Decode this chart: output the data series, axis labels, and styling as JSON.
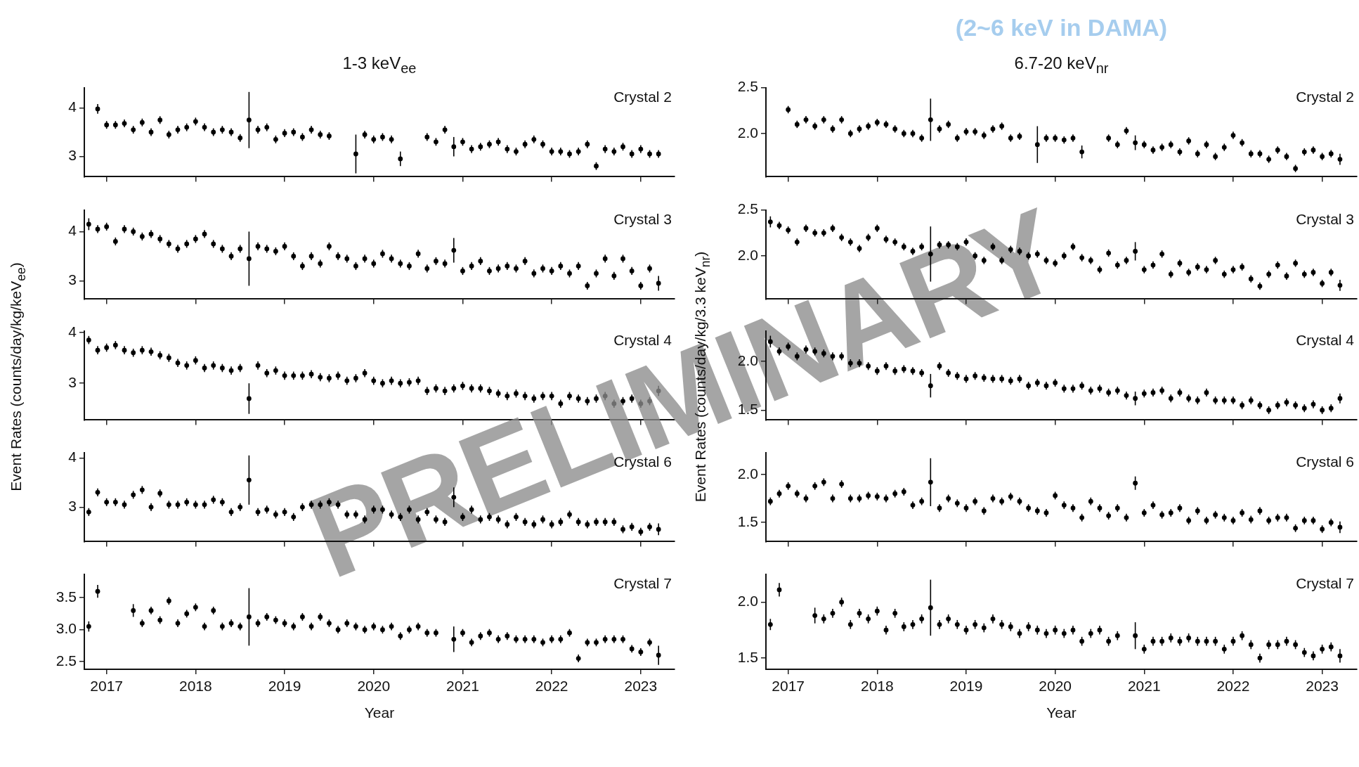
{
  "chart_data": [
    {
      "type": "scatter",
      "title": "1-3 keV$_{ee}$",
      "color": "#000000",
      "marker": "circle",
      "tick_labels": "y",
      "xlim": [
        2016.75,
        2023.38
      ],
      "xticks": [
        2017,
        2018,
        2019,
        2020,
        2021,
        2022,
        2023
      ],
      "ylim": [
        2.58,
        4.42
      ],
      "yticks": [
        {
          "value": 3,
          "label": "3"
        },
        {
          "value": 4,
          "label": "4"
        }
      ],
      "annotations": [
        "Crystal 2"
      ],
      "x": [
        2016.9,
        2017.0,
        2017.1,
        2017.2,
        2017.3,
        2017.4,
        2017.5,
        2017.6,
        2017.7,
        2017.8,
        2017.9,
        2018.0,
        2018.1,
        2018.2,
        2018.3,
        2018.4,
        2018.5,
        2018.6,
        2018.7,
        2018.8,
        2018.9,
        2019.0,
        2019.1,
        2019.2,
        2019.3,
        2019.4,
        2019.5,
        2019.8,
        2019.9,
        2020.0,
        2020.1,
        2020.2,
        2020.3,
        2020.6,
        2020.7,
        2020.8,
        2020.9,
        2021.0,
        2021.1,
        2021.2,
        2021.3,
        2021.4,
        2021.5,
        2021.6,
        2021.7,
        2021.8,
        2021.9,
        2022.0,
        2022.1,
        2022.2,
        2022.3,
        2022.4,
        2022.5,
        2022.6,
        2022.7,
        2022.8,
        2022.9,
        2023.0,
        2023.1,
        2023.2
      ],
      "values": [
        3.98,
        3.65,
        3.65,
        3.68,
        3.55,
        3.7,
        3.5,
        3.75,
        3.45,
        3.55,
        3.6,
        3.72,
        3.6,
        3.5,
        3.55,
        3.5,
        3.38,
        3.75,
        3.55,
        3.6,
        3.35,
        3.48,
        3.5,
        3.4,
        3.55,
        3.45,
        3.42,
        3.05,
        3.45,
        3.35,
        3.4,
        3.35,
        2.95,
        3.4,
        3.3,
        3.55,
        3.2,
        3.3,
        3.15,
        3.2,
        3.25,
        3.3,
        3.15,
        3.1,
        3.25,
        3.35,
        3.25,
        3.1,
        3.1,
        3.05,
        3.1,
        3.25,
        2.8,
        3.15,
        3.1,
        3.2,
        3.05,
        3.15,
        3.05,
        3.05
      ],
      "errors": [
        0.1,
        0.08,
        0.08,
        0.08,
        0.08,
        0.08,
        0.08,
        0.08,
        0.08,
        0.08,
        0.08,
        0.08,
        0.08,
        0.08,
        0.08,
        0.08,
        0.08,
        0.58,
        0.08,
        0.08,
        0.08,
        0.08,
        0.08,
        0.08,
        0.08,
        0.08,
        0.08,
        0.4,
        0.08,
        0.08,
        0.08,
        0.08,
        0.15,
        0.08,
        0.08,
        0.08,
        0.2,
        0.08,
        0.08,
        0.08,
        0.08,
        0.08,
        0.08,
        0.08,
        0.08,
        0.08,
        0.08,
        0.08,
        0.08,
        0.08,
        0.08,
        0.08,
        0.08,
        0.08,
        0.08,
        0.08,
        0.08,
        0.08,
        0.08,
        0.08
      ]
    },
    {
      "type": "scatter",
      "color": "#000000",
      "marker": "circle",
      "tick_labels": "y",
      "xlim": [
        2016.75,
        2023.38
      ],
      "xticks": [
        2017,
        2018,
        2019,
        2020,
        2021,
        2022,
        2023
      ],
      "ylim": [
        2.63,
        4.44
      ],
      "yticks": [
        {
          "value": 3,
          "label": "3"
        },
        {
          "value": 4,
          "label": "4"
        }
      ],
      "annotations": [
        "Crystal 3"
      ],
      "x": [
        2016.8,
        2016.9,
        2017.0,
        2017.1,
        2017.2,
        2017.3,
        2017.4,
        2017.5,
        2017.6,
        2017.7,
        2017.8,
        2017.9,
        2018.0,
        2018.1,
        2018.2,
        2018.3,
        2018.4,
        2018.5,
        2018.6,
        2018.7,
        2018.8,
        2018.9,
        2019.0,
        2019.1,
        2019.2,
        2019.3,
        2019.4,
        2019.5,
        2019.6,
        2019.7,
        2019.8,
        2019.9,
        2020.0,
        2020.1,
        2020.2,
        2020.3,
        2020.4,
        2020.5,
        2020.6,
        2020.7,
        2020.8,
        2020.9,
        2021.0,
        2021.1,
        2021.2,
        2021.3,
        2021.4,
        2021.5,
        2021.6,
        2021.7,
        2021.8,
        2021.9,
        2022.0,
        2022.1,
        2022.2,
        2022.3,
        2022.4,
        2022.5,
        2022.6,
        2022.7,
        2022.8,
        2022.9,
        2023.0,
        2023.1,
        2023.2
      ],
      "values": [
        4.15,
        4.05,
        4.1,
        3.8,
        4.05,
        4.0,
        3.9,
        3.95,
        3.85,
        3.75,
        3.65,
        3.75,
        3.85,
        3.95,
        3.75,
        3.65,
        3.5,
        3.65,
        3.45,
        3.7,
        3.65,
        3.6,
        3.7,
        3.5,
        3.3,
        3.5,
        3.35,
        3.7,
        3.5,
        3.45,
        3.3,
        3.45,
        3.35,
        3.55,
        3.45,
        3.35,
        3.3,
        3.55,
        3.25,
        3.4,
        3.35,
        3.62,
        3.2,
        3.3,
        3.4,
        3.2,
        3.25,
        3.3,
        3.25,
        3.4,
        3.15,
        3.25,
        3.2,
        3.3,
        3.15,
        3.3,
        2.9,
        3.15,
        3.45,
        3.1,
        3.45,
        3.2,
        2.9,
        3.25,
        2.95
      ],
      "errors": [
        0.12,
        0.08,
        0.08,
        0.08,
        0.08,
        0.08,
        0.08,
        0.08,
        0.08,
        0.08,
        0.08,
        0.08,
        0.08,
        0.08,
        0.08,
        0.08,
        0.08,
        0.08,
        0.55,
        0.08,
        0.08,
        0.08,
        0.08,
        0.08,
        0.08,
        0.08,
        0.08,
        0.08,
        0.08,
        0.08,
        0.08,
        0.08,
        0.08,
        0.08,
        0.08,
        0.08,
        0.08,
        0.08,
        0.08,
        0.08,
        0.08,
        0.25,
        0.08,
        0.08,
        0.08,
        0.08,
        0.08,
        0.08,
        0.08,
        0.08,
        0.08,
        0.08,
        0.08,
        0.08,
        0.08,
        0.08,
        0.08,
        0.08,
        0.08,
        0.08,
        0.08,
        0.08,
        0.08,
        0.08,
        0.15
      ]
    },
    {
      "type": "scatter",
      "color": "#000000",
      "marker": "circle",
      "tick_labels": "y",
      "ylabel": "Event Rates (counts/day/kg/keV$_{ee}$)",
      "xlim": [
        2016.75,
        2023.38
      ],
      "xticks": [
        2017,
        2018,
        2019,
        2020,
        2021,
        2022,
        2023
      ],
      "ylim": [
        2.28,
        4.03
      ],
      "yticks": [
        {
          "value": 3,
          "label": "3"
        },
        {
          "value": 4,
          "label": "4"
        }
      ],
      "annotations": [
        "Crystal 4",
        "PRELIMINARY"
      ],
      "x": [
        2016.8,
        2016.9,
        2017.0,
        2017.1,
        2017.2,
        2017.3,
        2017.4,
        2017.5,
        2017.6,
        2017.7,
        2017.8,
        2017.9,
        2018.0,
        2018.1,
        2018.2,
        2018.3,
        2018.4,
        2018.5,
        2018.6,
        2018.7,
        2018.8,
        2018.9,
        2019.0,
        2019.1,
        2019.2,
        2019.3,
        2019.4,
        2019.5,
        2019.6,
        2019.7,
        2019.8,
        2019.9,
        2020.0,
        2020.1,
        2020.2,
        2020.3,
        2020.4,
        2020.5,
        2020.6,
        2020.7,
        2020.8,
        2020.9,
        2021.0,
        2021.1,
        2021.2,
        2021.3,
        2021.4,
        2021.5,
        2021.6,
        2021.7,
        2021.8,
        2021.9,
        2022.0,
        2022.1,
        2022.2,
        2022.3,
        2022.4,
        2022.5,
        2022.6,
        2022.7,
        2022.8,
        2022.9,
        2023.0,
        2023.1,
        2023.2
      ],
      "values": [
        3.85,
        3.65,
        3.7,
        3.75,
        3.65,
        3.6,
        3.65,
        3.62,
        3.55,
        3.5,
        3.4,
        3.35,
        3.45,
        3.3,
        3.35,
        3.3,
        3.25,
        3.3,
        2.7,
        3.35,
        3.2,
        3.25,
        3.15,
        3.15,
        3.15,
        3.18,
        3.12,
        3.1,
        3.15,
        3.05,
        3.1,
        3.2,
        3.05,
        3.0,
        3.05,
        3.0,
        3.02,
        3.05,
        2.85,
        2.9,
        2.85,
        2.9,
        2.95,
        2.9,
        2.9,
        2.85,
        2.8,
        2.75,
        2.8,
        2.75,
        2.7,
        2.75,
        2.75,
        2.6,
        2.75,
        2.7,
        2.65,
        2.7,
        2.75,
        2.6,
        2.65,
        2.7,
        2.6,
        2.65,
        2.85
      ],
      "errors": [
        0.08,
        0.08,
        0.08,
        0.08,
        0.08,
        0.08,
        0.08,
        0.08,
        0.08,
        0.08,
        0.08,
        0.08,
        0.08,
        0.08,
        0.08,
        0.08,
        0.08,
        0.08,
        0.3,
        0.08,
        0.08,
        0.08,
        0.08,
        0.08,
        0.08,
        0.08,
        0.08,
        0.08,
        0.08,
        0.08,
        0.08,
        0.08,
        0.08,
        0.08,
        0.08,
        0.08,
        0.08,
        0.08,
        0.08,
        0.08,
        0.08,
        0.08,
        0.08,
        0.08,
        0.08,
        0.08,
        0.08,
        0.08,
        0.08,
        0.08,
        0.08,
        0.08,
        0.08,
        0.08,
        0.08,
        0.08,
        0.08,
        0.08,
        0.08,
        0.08,
        0.08,
        0.08,
        0.08,
        0.08,
        0.1
      ]
    },
    {
      "type": "scatter",
      "color": "#000000",
      "marker": "circle",
      "tick_labels": "y",
      "xlim": [
        2016.75,
        2023.38
      ],
      "xticks": [
        2017,
        2018,
        2019,
        2020,
        2021,
        2022,
        2023
      ],
      "ylim": [
        2.3,
        4.11
      ],
      "yticks": [
        {
          "value": 3,
          "label": "3"
        },
        {
          "value": 4,
          "label": "4"
        }
      ],
      "annotations": [
        "Crystal 6"
      ],
      "x": [
        2016.8,
        2016.9,
        2017.0,
        2017.1,
        2017.2,
        2017.3,
        2017.4,
        2017.5,
        2017.6,
        2017.7,
        2017.8,
        2017.9,
        2018.0,
        2018.1,
        2018.2,
        2018.3,
        2018.4,
        2018.5,
        2018.6,
        2018.7,
        2018.8,
        2018.9,
        2019.0,
        2019.1,
        2019.2,
        2019.3,
        2019.4,
        2019.5,
        2019.6,
        2019.7,
        2019.8,
        2019.9,
        2020.0,
        2020.1,
        2020.2,
        2020.3,
        2020.4,
        2020.5,
        2020.6,
        2020.7,
        2020.8,
        2020.9,
        2021.0,
        2021.1,
        2021.2,
        2021.3,
        2021.4,
        2021.5,
        2021.6,
        2021.7,
        2021.8,
        2021.9,
        2022.0,
        2022.1,
        2022.2,
        2022.3,
        2022.4,
        2022.5,
        2022.6,
        2022.7,
        2022.8,
        2022.9,
        2023.0,
        2023.1,
        2023.2
      ],
      "values": [
        2.9,
        3.3,
        3.1,
        3.1,
        3.05,
        3.25,
        3.35,
        3.0,
        3.28,
        3.05,
        3.05,
        3.1,
        3.05,
        3.05,
        3.15,
        3.1,
        2.9,
        3.0,
        3.55,
        2.9,
        2.95,
        2.85,
        2.9,
        2.8,
        3.0,
        3.05,
        3.05,
        3.1,
        3.05,
        2.85,
        2.85,
        2.75,
        2.95,
        2.95,
        2.85,
        2.8,
        2.95,
        2.75,
        2.9,
        2.75,
        2.7,
        3.2,
        2.8,
        2.95,
        2.75,
        2.8,
        2.75,
        2.65,
        2.8,
        2.7,
        2.65,
        2.75,
        2.65,
        2.7,
        2.85,
        2.7,
        2.65,
        2.7,
        2.7,
        2.7,
        2.55,
        2.6,
        2.5,
        2.6,
        2.55
      ],
      "errors": [
        0.08,
        0.08,
        0.08,
        0.08,
        0.08,
        0.08,
        0.08,
        0.08,
        0.08,
        0.08,
        0.08,
        0.08,
        0.08,
        0.08,
        0.08,
        0.08,
        0.08,
        0.08,
        0.5,
        0.08,
        0.08,
        0.08,
        0.08,
        0.08,
        0.08,
        0.08,
        0.08,
        0.08,
        0.08,
        0.08,
        0.08,
        0.08,
        0.08,
        0.08,
        0.08,
        0.08,
        0.08,
        0.08,
        0.08,
        0.08,
        0.08,
        0.2,
        0.08,
        0.08,
        0.08,
        0.08,
        0.08,
        0.08,
        0.08,
        0.08,
        0.08,
        0.08,
        0.08,
        0.08,
        0.08,
        0.08,
        0.08,
        0.08,
        0.08,
        0.08,
        0.08,
        0.08,
        0.08,
        0.08,
        0.12
      ]
    },
    {
      "type": "scatter",
      "color": "#000000",
      "marker": "circle",
      "xlabel": "Year",
      "xlim": [
        2016.75,
        2023.38
      ],
      "xticks": [
        2017,
        2018,
        2019,
        2020,
        2021,
        2022,
        2023
      ],
      "ylim": [
        2.38,
        3.87
      ],
      "yticks": [
        {
          "value": 2.5,
          "label": "2.5"
        },
        {
          "value": 3,
          "label": "3.0"
        },
        {
          "value": 3.5,
          "label": "3.5"
        }
      ],
      "annotations": [
        "Crystal 7"
      ],
      "x": [
        2016.8,
        2016.9,
        2017.3,
        2017.4,
        2017.5,
        2017.6,
        2017.7,
        2017.8,
        2017.9,
        2018.0,
        2018.1,
        2018.2,
        2018.3,
        2018.4,
        2018.5,
        2018.6,
        2018.7,
        2018.8,
        2018.9,
        2019.0,
        2019.1,
        2019.2,
        2019.3,
        2019.4,
        2019.5,
        2019.6,
        2019.7,
        2019.8,
        2019.9,
        2020.0,
        2020.1,
        2020.2,
        2020.3,
        2020.4,
        2020.5,
        2020.6,
        2020.7,
        2020.9,
        2021.0,
        2021.1,
        2021.2,
        2021.3,
        2021.4,
        2021.5,
        2021.6,
        2021.7,
        2021.8,
        2021.9,
        2022.0,
        2022.1,
        2022.2,
        2022.3,
        2022.4,
        2022.5,
        2022.6,
        2022.7,
        2022.8,
        2022.9,
        2023.0,
        2023.1,
        2023.2
      ],
      "values": [
        3.05,
        3.6,
        3.3,
        3.1,
        3.3,
        3.15,
        3.45,
        3.1,
        3.25,
        3.35,
        3.05,
        3.3,
        3.05,
        3.1,
        3.05,
        3.2,
        3.1,
        3.2,
        3.15,
        3.1,
        3.05,
        3.2,
        3.05,
        3.2,
        3.1,
        3.0,
        3.1,
        3.05,
        3.0,
        3.05,
        3.0,
        3.05,
        2.9,
        3.0,
        3.05,
        2.95,
        2.95,
        2.85,
        2.95,
        2.8,
        2.9,
        2.95,
        2.85,
        2.9,
        2.85,
        2.85,
        2.85,
        2.8,
        2.85,
        2.85,
        2.95,
        2.55,
        2.8,
        2.8,
        2.85,
        2.85,
        2.85,
        2.7,
        2.65,
        2.8,
        2.6
      ],
      "errors": [
        0.08,
        0.1,
        0.1,
        0.06,
        0.06,
        0.06,
        0.06,
        0.06,
        0.06,
        0.06,
        0.06,
        0.06,
        0.06,
        0.06,
        0.06,
        0.45,
        0.06,
        0.06,
        0.06,
        0.06,
        0.06,
        0.06,
        0.06,
        0.06,
        0.06,
        0.06,
        0.06,
        0.06,
        0.06,
        0.06,
        0.06,
        0.06,
        0.06,
        0.06,
        0.06,
        0.06,
        0.06,
        0.2,
        0.06,
        0.06,
        0.06,
        0.06,
        0.06,
        0.06,
        0.06,
        0.06,
        0.06,
        0.06,
        0.06,
        0.06,
        0.06,
        0.06,
        0.06,
        0.06,
        0.06,
        0.06,
        0.06,
        0.06,
        0.06,
        0.06,
        0.15
      ]
    },
    {
      "type": "scatter",
      "title": "6.7-20 keV$_{nr}$",
      "subtitle": "(2~6 keV in DAMA)",
      "color": "#000000",
      "marker": "circle",
      "tick_labels": "y",
      "xlim": [
        2016.75,
        2023.39
      ],
      "xticks": [
        2017,
        2018,
        2019,
        2020,
        2021,
        2022,
        2023
      ],
      "ylim": [
        1.53,
        2.5
      ],
      "yticks": [
        {
          "value": 2,
          "label": "2.0"
        },
        {
          "value": 2.5,
          "label": "2.5"
        }
      ],
      "annotations": [
        "Crystal 2"
      ],
      "x": [
        2017.0,
        2017.1,
        2017.2,
        2017.3,
        2017.4,
        2017.5,
        2017.6,
        2017.7,
        2017.8,
        2017.9,
        2018.0,
        2018.1,
        2018.2,
        2018.3,
        2018.4,
        2018.5,
        2018.6,
        2018.7,
        2018.8,
        2018.9,
        2019.0,
        2019.1,
        2019.2,
        2019.3,
        2019.4,
        2019.5,
        2019.6,
        2019.8,
        2019.9,
        2020.0,
        2020.1,
        2020.2,
        2020.3,
        2020.6,
        2020.7,
        2020.8,
        2020.9,
        2021.0,
        2021.1,
        2021.2,
        2021.3,
        2021.4,
        2021.5,
        2021.6,
        2021.7,
        2021.8,
        2021.9,
        2022.0,
        2022.1,
        2022.2,
        2022.3,
        2022.4,
        2022.5,
        2022.6,
        2022.7,
        2022.8,
        2022.9,
        2023.0,
        2023.1,
        2023.2
      ],
      "values": [
        2.26,
        2.1,
        2.15,
        2.08,
        2.15,
        2.05,
        2.15,
        2.0,
        2.05,
        2.08,
        2.12,
        2.1,
        2.05,
        2.0,
        2.0,
        1.95,
        2.15,
        2.05,
        2.1,
        1.95,
        2.02,
        2.02,
        1.98,
        2.05,
        2.08,
        1.95,
        1.97,
        1.88,
        1.95,
        1.95,
        1.93,
        1.95,
        1.8,
        1.95,
        1.88,
        2.03,
        1.9,
        1.88,
        1.82,
        1.85,
        1.88,
        1.8,
        1.92,
        1.78,
        1.88,
        1.75,
        1.85,
        1.98,
        1.9,
        1.78,
        1.78,
        1.72,
        1.82,
        1.75,
        1.62,
        1.8,
        1.82,
        1.75,
        1.78,
        1.72
      ],
      "errors": [
        0.04,
        0.04,
        0.04,
        0.04,
        0.04,
        0.04,
        0.04,
        0.04,
        0.04,
        0.04,
        0.04,
        0.04,
        0.04,
        0.04,
        0.04,
        0.04,
        0.23,
        0.04,
        0.04,
        0.04,
        0.04,
        0.04,
        0.04,
        0.04,
        0.04,
        0.04,
        0.04,
        0.2,
        0.04,
        0.04,
        0.04,
        0.04,
        0.07,
        0.04,
        0.04,
        0.04,
        0.08,
        0.04,
        0.04,
        0.04,
        0.04,
        0.04,
        0.04,
        0.04,
        0.04,
        0.04,
        0.04,
        0.04,
        0.04,
        0.04,
        0.04,
        0.04,
        0.04,
        0.04,
        0.04,
        0.04,
        0.04,
        0.04,
        0.04,
        0.06
      ]
    },
    {
      "type": "scatter",
      "color": "#000000",
      "marker": "circle",
      "tick_labels": "y",
      "xlim": [
        2016.75,
        2023.39
      ],
      "xticks": [
        2017,
        2018,
        2019,
        2020,
        2021,
        2022,
        2023
      ],
      "ylim": [
        1.53,
        2.5
      ],
      "yticks": [
        {
          "value": 2,
          "label": "2.0"
        },
        {
          "value": 2.5,
          "label": "2.5"
        }
      ],
      "annotations": [
        "Crystal 3"
      ],
      "x": [
        2016.8,
        2016.9,
        2017.0,
        2017.1,
        2017.2,
        2017.3,
        2017.4,
        2017.5,
        2017.6,
        2017.7,
        2017.8,
        2017.9,
        2018.0,
        2018.1,
        2018.2,
        2018.3,
        2018.4,
        2018.5,
        2018.6,
        2018.7,
        2018.8,
        2018.9,
        2019.0,
        2019.1,
        2019.2,
        2019.3,
        2019.4,
        2019.5,
        2019.6,
        2019.7,
        2019.8,
        2019.9,
        2020.0,
        2020.1,
        2020.2,
        2020.3,
        2020.4,
        2020.5,
        2020.6,
        2020.7,
        2020.8,
        2020.9,
        2021.0,
        2021.1,
        2021.2,
        2021.3,
        2021.4,
        2021.5,
        2021.6,
        2021.7,
        2021.8,
        2021.9,
        2022.0,
        2022.1,
        2022.2,
        2022.3,
        2022.4,
        2022.5,
        2022.6,
        2022.7,
        2022.8,
        2022.9,
        2023.0,
        2023.1,
        2023.2
      ],
      "values": [
        2.37,
        2.33,
        2.28,
        2.15,
        2.3,
        2.25,
        2.25,
        2.3,
        2.2,
        2.15,
        2.08,
        2.2,
        2.3,
        2.18,
        2.15,
        2.1,
        2.05,
        2.1,
        2.02,
        2.12,
        2.12,
        2.1,
        2.15,
        2.0,
        1.95,
        2.1,
        1.95,
        2.07,
        2.05,
        2.0,
        2.02,
        1.95,
        1.92,
        2.0,
        2.1,
        1.98,
        1.95,
        1.85,
        2.03,
        1.9,
        1.95,
        2.05,
        1.85,
        1.9,
        2.02,
        1.8,
        1.92,
        1.82,
        1.88,
        1.85,
        1.95,
        1.8,
        1.85,
        1.88,
        1.75,
        1.67,
        1.8,
        1.9,
        1.78,
        1.92,
        1.8,
        1.82,
        1.7,
        1.82,
        1.68
      ],
      "errors": [
        0.06,
        0.04,
        0.04,
        0.04,
        0.04,
        0.04,
        0.04,
        0.04,
        0.04,
        0.04,
        0.04,
        0.04,
        0.04,
        0.04,
        0.04,
        0.04,
        0.04,
        0.04,
        0.3,
        0.04,
        0.04,
        0.04,
        0.04,
        0.04,
        0.04,
        0.04,
        0.04,
        0.04,
        0.04,
        0.04,
        0.04,
        0.04,
        0.04,
        0.04,
        0.04,
        0.04,
        0.04,
        0.04,
        0.04,
        0.04,
        0.04,
        0.1,
        0.04,
        0.04,
        0.04,
        0.04,
        0.04,
        0.04,
        0.04,
        0.04,
        0.04,
        0.04,
        0.04,
        0.04,
        0.04,
        0.04,
        0.04,
        0.04,
        0.04,
        0.04,
        0.04,
        0.04,
        0.04,
        0.04,
        0.06
      ]
    },
    {
      "type": "scatter",
      "color": "#000000",
      "marker": "circle",
      "tick_labels": "y",
      "ylabel": "Event Rates (counts/day/kg/3.3 keV$_{nr}$)",
      "xlim": [
        2016.75,
        2023.39
      ],
      "xticks": [
        2017,
        2018,
        2019,
        2020,
        2021,
        2022,
        2023
      ],
      "ylim": [
        1.4,
        2.31
      ],
      "yticks": [
        {
          "value": 1.5,
          "label": "1.5"
        },
        {
          "value": 2,
          "label": "2.0"
        }
      ],
      "annotations": [
        "Crystal 4"
      ],
      "x": [
        2016.8,
        2016.9,
        2017.0,
        2017.1,
        2017.2,
        2017.3,
        2017.4,
        2017.5,
        2017.6,
        2017.7,
        2017.8,
        2017.9,
        2018.0,
        2018.1,
        2018.2,
        2018.3,
        2018.4,
        2018.5,
        2018.6,
        2018.7,
        2018.8,
        2018.9,
        2019.0,
        2019.1,
        2019.2,
        2019.3,
        2019.4,
        2019.5,
        2019.6,
        2019.7,
        2019.8,
        2019.9,
        2020.0,
        2020.1,
        2020.2,
        2020.3,
        2020.4,
        2020.5,
        2020.6,
        2020.7,
        2020.8,
        2020.9,
        2021.0,
        2021.1,
        2021.2,
        2021.3,
        2021.4,
        2021.5,
        2021.6,
        2021.7,
        2021.8,
        2021.9,
        2022.0,
        2022.1,
        2022.2,
        2022.3,
        2022.4,
        2022.5,
        2022.6,
        2022.7,
        2022.8,
        2022.9,
        2023.0,
        2023.1,
        2023.2
      ],
      "values": [
        2.2,
        2.1,
        2.15,
        2.05,
        2.12,
        2.1,
        2.08,
        2.05,
        2.05,
        1.98,
        1.98,
        1.95,
        1.9,
        1.95,
        1.9,
        1.92,
        1.9,
        1.88,
        1.75,
        1.95,
        1.88,
        1.85,
        1.82,
        1.85,
        1.83,
        1.82,
        1.82,
        1.8,
        1.82,
        1.75,
        1.78,
        1.75,
        1.78,
        1.72,
        1.72,
        1.75,
        1.7,
        1.72,
        1.68,
        1.7,
        1.65,
        1.62,
        1.67,
        1.68,
        1.7,
        1.62,
        1.68,
        1.62,
        1.6,
        1.68,
        1.6,
        1.6,
        1.6,
        1.55,
        1.6,
        1.55,
        1.5,
        1.55,
        1.58,
        1.55,
        1.52,
        1.56,
        1.5,
        1.52,
        1.62
      ],
      "errors": [
        0.06,
        0.04,
        0.04,
        0.04,
        0.04,
        0.04,
        0.04,
        0.04,
        0.04,
        0.04,
        0.04,
        0.04,
        0.04,
        0.04,
        0.04,
        0.04,
        0.04,
        0.04,
        0.12,
        0.04,
        0.04,
        0.04,
        0.04,
        0.04,
        0.04,
        0.04,
        0.04,
        0.04,
        0.04,
        0.04,
        0.04,
        0.04,
        0.04,
        0.04,
        0.04,
        0.04,
        0.04,
        0.04,
        0.04,
        0.04,
        0.04,
        0.07,
        0.04,
        0.04,
        0.04,
        0.04,
        0.04,
        0.04,
        0.04,
        0.04,
        0.04,
        0.04,
        0.04,
        0.04,
        0.04,
        0.04,
        0.04,
        0.04,
        0.04,
        0.04,
        0.04,
        0.04,
        0.04,
        0.04,
        0.05
      ]
    },
    {
      "type": "scatter",
      "color": "#000000",
      "marker": "circle",
      "tick_labels": "y",
      "xlim": [
        2016.75,
        2023.39
      ],
      "xticks": [
        2017,
        2018,
        2019,
        2020,
        2021,
        2022,
        2023
      ],
      "ylim": [
        1.3,
        2.23
      ],
      "yticks": [
        {
          "value": 1.5,
          "label": "1.5"
        },
        {
          "value": 2,
          "label": "2.0"
        }
      ],
      "annotations": [
        "Crystal 6"
      ],
      "x": [
        2016.8,
        2016.9,
        2017.0,
        2017.1,
        2017.2,
        2017.3,
        2017.4,
        2017.5,
        2017.6,
        2017.7,
        2017.8,
        2017.9,
        2018.0,
        2018.1,
        2018.2,
        2018.3,
        2018.4,
        2018.5,
        2018.6,
        2018.7,
        2018.8,
        2018.9,
        2019.0,
        2019.1,
        2019.2,
        2019.3,
        2019.4,
        2019.5,
        2019.6,
        2019.7,
        2019.8,
        2019.9,
        2020.0,
        2020.1,
        2020.2,
        2020.3,
        2020.4,
        2020.5,
        2020.6,
        2020.7,
        2020.8,
        2020.9,
        2021.0,
        2021.1,
        2021.2,
        2021.3,
        2021.4,
        2021.5,
        2021.6,
        2021.7,
        2021.8,
        2021.9,
        2022.0,
        2022.1,
        2022.2,
        2022.3,
        2022.4,
        2022.5,
        2022.6,
        2022.7,
        2022.8,
        2022.9,
        2023.0,
        2023.1,
        2023.2
      ],
      "values": [
        1.72,
        1.8,
        1.88,
        1.8,
        1.75,
        1.88,
        1.92,
        1.75,
        1.9,
        1.75,
        1.75,
        1.78,
        1.77,
        1.75,
        1.8,
        1.82,
        1.68,
        1.72,
        1.92,
        1.65,
        1.75,
        1.7,
        1.65,
        1.72,
        1.62,
        1.75,
        1.72,
        1.77,
        1.72,
        1.65,
        1.62,
        1.6,
        1.78,
        1.68,
        1.65,
        1.55,
        1.72,
        1.65,
        1.57,
        1.65,
        1.55,
        1.91,
        1.6,
        1.68,
        1.58,
        1.6,
        1.65,
        1.52,
        1.62,
        1.52,
        1.58,
        1.55,
        1.52,
        1.6,
        1.53,
        1.62,
        1.52,
        1.55,
        1.55,
        1.44,
        1.52,
        1.52,
        1.43,
        1.5,
        1.45
      ],
      "errors": [
        0.04,
        0.04,
        0.04,
        0.04,
        0.04,
        0.04,
        0.04,
        0.04,
        0.04,
        0.04,
        0.04,
        0.04,
        0.04,
        0.04,
        0.04,
        0.04,
        0.04,
        0.04,
        0.25,
        0.04,
        0.04,
        0.04,
        0.04,
        0.04,
        0.04,
        0.04,
        0.04,
        0.04,
        0.04,
        0.04,
        0.04,
        0.04,
        0.04,
        0.04,
        0.04,
        0.04,
        0.04,
        0.04,
        0.04,
        0.04,
        0.04,
        0.07,
        0.04,
        0.04,
        0.04,
        0.04,
        0.04,
        0.04,
        0.04,
        0.04,
        0.04,
        0.04,
        0.04,
        0.04,
        0.04,
        0.04,
        0.04,
        0.04,
        0.04,
        0.04,
        0.04,
        0.04,
        0.04,
        0.04,
        0.06
      ]
    },
    {
      "type": "scatter",
      "color": "#000000",
      "marker": "circle",
      "xlabel": "Year",
      "xlim": [
        2016.75,
        2023.39
      ],
      "xticks": [
        2017,
        2018,
        2019,
        2020,
        2021,
        2022,
        2023
      ],
      "ylim": [
        1.4,
        2.25
      ],
      "yticks": [
        {
          "value": 1.5,
          "label": "1.5"
        },
        {
          "value": 2,
          "label": "2.0"
        }
      ],
      "annotations": [
        "Crystal 7"
      ],
      "x": [
        2016.8,
        2016.9,
        2017.3,
        2017.4,
        2017.5,
        2017.6,
        2017.7,
        2017.8,
        2017.9,
        2018.0,
        2018.1,
        2018.2,
        2018.3,
        2018.4,
        2018.5,
        2018.6,
        2018.7,
        2018.8,
        2018.9,
        2019.0,
        2019.1,
        2019.2,
        2019.3,
        2019.4,
        2019.5,
        2019.6,
        2019.7,
        2019.8,
        2019.9,
        2020.0,
        2020.1,
        2020.2,
        2020.3,
        2020.4,
        2020.5,
        2020.6,
        2020.7,
        2020.9,
        2021.0,
        2021.1,
        2021.2,
        2021.3,
        2021.4,
        2021.5,
        2021.6,
        2021.7,
        2021.8,
        2021.9,
        2022.0,
        2022.1,
        2022.2,
        2022.3,
        2022.4,
        2022.5,
        2022.6,
        2022.7,
        2022.8,
        2022.9,
        2023.0,
        2023.1,
        2023.2
      ],
      "values": [
        1.8,
        2.11,
        1.88,
        1.85,
        1.9,
        2.0,
        1.8,
        1.9,
        1.85,
        1.92,
        1.75,
        1.9,
        1.78,
        1.8,
        1.85,
        1.95,
        1.8,
        1.85,
        1.8,
        1.75,
        1.8,
        1.77,
        1.85,
        1.8,
        1.78,
        1.72,
        1.78,
        1.75,
        1.72,
        1.75,
        1.72,
        1.75,
        1.65,
        1.72,
        1.75,
        1.65,
        1.7,
        1.7,
        1.58,
        1.65,
        1.65,
        1.68,
        1.65,
        1.68,
        1.65,
        1.65,
        1.65,
        1.58,
        1.65,
        1.7,
        1.62,
        1.5,
        1.62,
        1.62,
        1.65,
        1.62,
        1.55,
        1.52,
        1.58,
        1.6,
        1.52
      ],
      "errors": [
        0.05,
        0.06,
        0.07,
        0.04,
        0.04,
        0.04,
        0.04,
        0.04,
        0.04,
        0.04,
        0.04,
        0.04,
        0.04,
        0.04,
        0.04,
        0.25,
        0.04,
        0.04,
        0.04,
        0.04,
        0.04,
        0.04,
        0.04,
        0.04,
        0.04,
        0.04,
        0.04,
        0.04,
        0.04,
        0.04,
        0.04,
        0.04,
        0.04,
        0.04,
        0.04,
        0.04,
        0.04,
        0.12,
        0.04,
        0.04,
        0.04,
        0.04,
        0.04,
        0.04,
        0.04,
        0.04,
        0.04,
        0.04,
        0.04,
        0.04,
        0.04,
        0.04,
        0.04,
        0.04,
        0.04,
        0.04,
        0.04,
        0.04,
        0.04,
        0.04,
        0.06
      ]
    }
  ]
}
